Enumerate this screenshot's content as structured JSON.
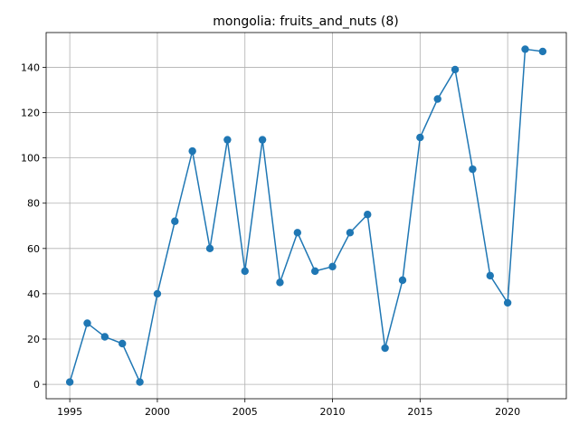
{
  "chart_data": {
    "type": "line",
    "title": "mongolia: fruits_and_nuts (8)",
    "xlabel": "",
    "ylabel": "",
    "xlim": [
      1993.65,
      2023.35
    ],
    "ylim": [
      -6.35,
      155.35
    ],
    "xticks": [
      1995,
      2000,
      2005,
      2010,
      2015,
      2020
    ],
    "yticks": [
      0,
      20,
      40,
      60,
      80,
      100,
      120,
      140
    ],
    "grid": true,
    "color": "#1f77b4",
    "series": [
      {
        "x": [
          1995,
          1996,
          1997,
          1998,
          1999,
          2000,
          2001,
          2002,
          2003,
          2004,
          2005,
          2006,
          2007,
          2008,
          2009,
          2010,
          2011,
          2012,
          2013,
          2014,
          2015,
          2016,
          2017,
          2018,
          2019,
          2020,
          2021,
          2022
        ],
        "values": [
          1,
          27,
          21,
          18,
          1,
          40,
          72,
          103,
          60,
          108,
          50,
          108,
          45,
          67,
          50,
          52,
          67,
          75,
          16,
          46,
          109,
          126,
          139,
          95,
          48,
          36,
          148,
          147
        ]
      }
    ]
  }
}
